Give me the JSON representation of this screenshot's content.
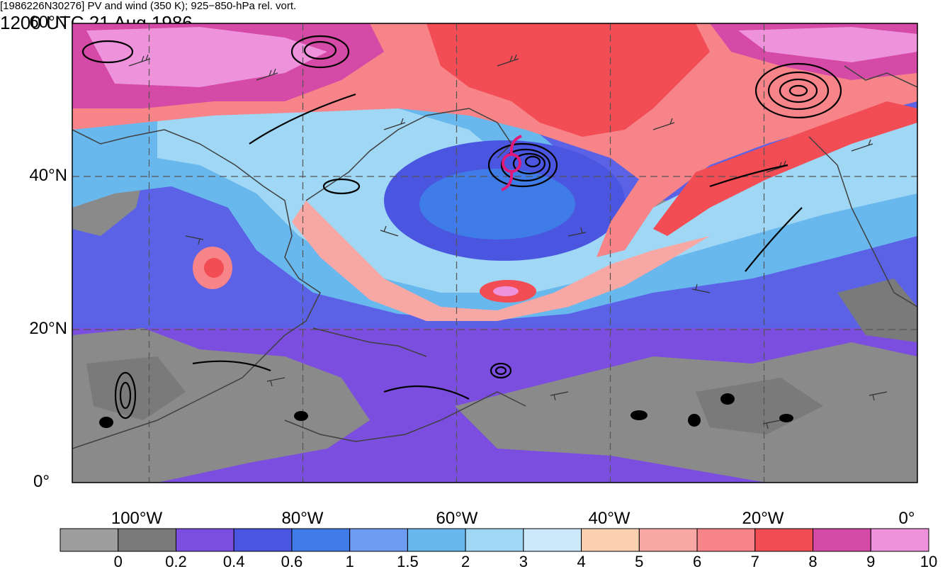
{
  "header": {
    "title_left": "[1986226N30276] PV and wind (350 K); 925−850-hPa rel. vort.",
    "title_right": "1200 UTC 21 Aug 1986"
  },
  "map": {
    "lat_labels": [
      "60°N",
      "40°N",
      "20°N",
      "0°"
    ],
    "lon_labels": [
      "100°W",
      "80°W",
      "60°W",
      "40°W",
      "20°W",
      "0°"
    ],
    "storm_symbol": "tropical-cyclone-icon",
    "storm_color": "#e0197a",
    "contour_color": "#000000",
    "coast_color": "#404040"
  },
  "colorbar": {
    "labels": [
      "0",
      "0.2",
      "0.4",
      "0.6",
      "1",
      "1.5",
      "2",
      "3",
      "4",
      "5",
      "6",
      "7",
      "8",
      "9",
      "10"
    ],
    "colors": [
      "#9e9e9e",
      "#7a7a7a",
      "#7b4ee0",
      "#4a55e0",
      "#3f7ce8",
      "#6e9cf2",
      "#68b8ee",
      "#9fd7f5",
      "#cce9fb",
      "#fcd1b2",
      "#f8a8a4",
      "#f78488",
      "#f24c54",
      "#d44aa6",
      "#ee92dc"
    ]
  }
}
